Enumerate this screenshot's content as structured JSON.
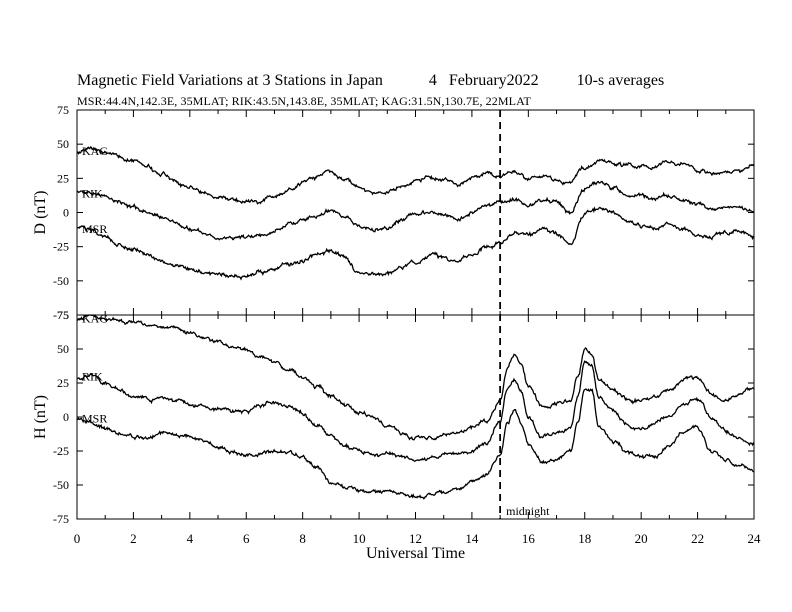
{
  "title": "Magnetic Field Variations at 3 Stations in Japan",
  "date_label": "4   February2022",
  "averaging": "10-s averages",
  "subtitle": "MSR:44.4N,142.3E, 35MLAT;  RIK:43.5N,143.8E, 35MLAT;  KAG:31.5N,130.7E, 22MLAT",
  "chart_data": [
    {
      "type": "line",
      "ylabel": "D (nT)",
      "ylim": [
        -75,
        75
      ],
      "yticks": [
        75,
        50,
        25,
        0,
        -25,
        -50,
        -75
      ],
      "xlim": [
        0,
        24
      ],
      "series": [
        {
          "name": "KAG",
          "x": [
            0,
            0.5,
            1,
            1.5,
            2,
            2.5,
            3,
            3.5,
            4,
            4.5,
            5,
            5.5,
            6,
            6.5,
            7,
            7.5,
            8,
            8.5,
            9,
            9.5,
            10,
            10.5,
            11,
            11.5,
            12,
            12.5,
            13,
            13.5,
            14,
            14.5,
            15,
            15.5,
            16,
            16.5,
            17,
            17.5,
            18,
            18.5,
            19,
            19.5,
            20,
            20.5,
            21,
            21.5,
            22,
            22.5,
            23,
            23.5,
            24
          ],
          "y": [
            45,
            48,
            45,
            42,
            38,
            33,
            28,
            23,
            18,
            14,
            11,
            9,
            8,
            8,
            12,
            17,
            22,
            26,
            30,
            25,
            17,
            14,
            14,
            19,
            24,
            26,
            24,
            20,
            25,
            28,
            27,
            30,
            25,
            27,
            24,
            22,
            33,
            38,
            37,
            35,
            33,
            34,
            37,
            36,
            32,
            29,
            30,
            31,
            34
          ]
        },
        {
          "name": "RIK",
          "x": [
            0,
            0.5,
            1,
            1.5,
            2,
            2.5,
            3,
            3.5,
            4,
            4.5,
            5,
            5.5,
            6,
            6.5,
            7,
            7.5,
            8,
            8.5,
            9,
            9.5,
            10,
            10.5,
            11,
            11.5,
            12,
            12.5,
            13,
            13.5,
            14,
            14.5,
            15,
            15.5,
            16,
            16.5,
            17,
            17.5,
            18,
            18.5,
            19,
            19.5,
            20,
            20.5,
            21,
            21.5,
            22,
            22.5,
            23,
            23.5,
            24
          ],
          "y": [
            15,
            16,
            12,
            8,
            4,
            0,
            -4,
            -8,
            -12,
            -15,
            -17,
            -18,
            -19,
            -17,
            -14,
            -10,
            -6,
            -2,
            2,
            -3,
            -10,
            -12,
            -12,
            -6,
            -1,
            0,
            -2,
            -5,
            0,
            4,
            6,
            10,
            5,
            10,
            8,
            0,
            18,
            22,
            18,
            14,
            12,
            10,
            12,
            10,
            6,
            3,
            4,
            3,
            0
          ]
        },
        {
          "name": "MSR",
          "x": [
            0,
            0.5,
            1,
            1.5,
            2,
            2.5,
            3,
            3.5,
            4,
            4.5,
            5,
            5.5,
            6,
            6.5,
            7,
            7.5,
            8,
            8.5,
            9,
            9.5,
            10,
            10.5,
            11,
            11.5,
            12,
            12.5,
            13,
            13.5,
            14,
            14.5,
            15,
            15.5,
            16,
            16.5,
            17,
            17.5,
            18,
            18.5,
            19,
            19.5,
            20,
            20.5,
            21,
            21.5,
            22,
            22.5,
            23,
            23.5,
            24
          ],
          "y": [
            -10,
            -12,
            -18,
            -24,
            -28,
            -31,
            -35,
            -39,
            -42,
            -44,
            -45,
            -46,
            -47,
            -44,
            -42,
            -38,
            -35,
            -30,
            -28,
            -34,
            -43,
            -45,
            -46,
            -40,
            -35,
            -31,
            -33,
            -36,
            -30,
            -25,
            -22,
            -15,
            -18,
            -13,
            -16,
            -22,
            0,
            4,
            0,
            -6,
            -9,
            -11,
            -9,
            -11,
            -15,
            -17,
            -15,
            -14,
            -18
          ]
        }
      ],
      "labels": [
        "KAG",
        "RIK",
        "MSR"
      ]
    },
    {
      "type": "line",
      "ylabel": "H (nT)",
      "ylim": [
        -75,
        75
      ],
      "yticks": [
        75,
        50,
        25,
        0,
        -25,
        -50,
        -75
      ],
      "xlim": [
        0,
        24
      ],
      "xlabel": "Universal Time",
      "xticks": [
        0,
        2,
        4,
        6,
        8,
        10,
        12,
        14,
        16,
        18,
        20,
        22,
        24
      ],
      "vline": {
        "x": 15,
        "label": "midnight"
      },
      "series": [
        {
          "name": "KAG",
          "x": [
            0,
            0.5,
            1,
            1.5,
            2,
            2.5,
            3,
            3.5,
            4,
            4.5,
            5,
            5.5,
            6,
            6.5,
            7,
            7.5,
            8,
            8.5,
            9,
            9.5,
            10,
            10.5,
            11,
            11.5,
            12,
            12.5,
            13,
            13.5,
            14,
            14.5,
            15,
            15.25,
            15.5,
            15.75,
            16,
            16.5,
            17,
            17.5,
            17.75,
            18,
            18.25,
            18.5,
            19,
            19.5,
            20,
            20.5,
            21,
            21.5,
            22,
            22.5,
            23,
            23.5,
            24
          ],
          "y": [
            72,
            74,
            72,
            70,
            70,
            68,
            67,
            66,
            62,
            58,
            55,
            52,
            50,
            45,
            40,
            34,
            28,
            22,
            15,
            8,
            4,
            0,
            -6,
            -12,
            -15,
            -16,
            -14,
            -12,
            -8,
            -3,
            12,
            35,
            44,
            38,
            22,
            8,
            10,
            12,
            30,
            50,
            47,
            28,
            20,
            13,
            12,
            15,
            20,
            28,
            30,
            18,
            12,
            16,
            22
          ]
        },
        {
          "name": "RIK",
          "x": [
            0,
            0.5,
            1,
            1.5,
            2,
            2.5,
            3,
            3.5,
            4,
            4.5,
            5,
            5.5,
            6,
            6.5,
            7,
            7.5,
            8,
            8.5,
            9,
            9.5,
            10,
            10.5,
            11,
            11.5,
            12,
            12.5,
            13,
            13.5,
            14,
            14.5,
            15,
            15.25,
            15.5,
            15.75,
            16,
            16.5,
            17,
            17.5,
            17.75,
            18,
            18.25,
            18.5,
            19,
            19.5,
            20,
            20.5,
            21,
            21.5,
            22,
            22.5,
            23,
            23.5,
            24
          ],
          "y": [
            28,
            30,
            25,
            20,
            15,
            12,
            14,
            12,
            10,
            8,
            6,
            4,
            5,
            8,
            10,
            8,
            2,
            -5,
            -15,
            -22,
            -25,
            -27,
            -28,
            -30,
            -32,
            -30,
            -28,
            -27,
            -25,
            -20,
            -2,
            22,
            28,
            18,
            0,
            -15,
            -12,
            -8,
            15,
            40,
            38,
            15,
            5,
            -4,
            -8,
            -5,
            0,
            10,
            12,
            -2,
            -10,
            -15,
            -20
          ]
        },
        {
          "name": "MSR",
          "x": [
            0,
            0.5,
            1,
            1.5,
            2,
            2.5,
            3,
            3.5,
            4,
            4.5,
            5,
            5.5,
            6,
            6.5,
            7,
            7.5,
            8,
            8.5,
            9,
            9.5,
            10,
            10.5,
            11,
            11.5,
            12,
            12.5,
            13,
            13.5,
            14,
            14.5,
            15,
            15.25,
            15.5,
            15.75,
            16,
            16.5,
            17,
            17.5,
            17.75,
            18,
            18.25,
            18.5,
            19,
            19.5,
            20,
            20.5,
            21,
            21.5,
            22,
            22.5,
            23,
            23.5,
            24
          ],
          "y": [
            -2,
            -4,
            -8,
            -12,
            -15,
            -15,
            -12,
            -14,
            -15,
            -18,
            -22,
            -26,
            -28,
            -27,
            -25,
            -27,
            -30,
            -37,
            -48,
            -52,
            -53,
            -54,
            -55,
            -56,
            -60,
            -57,
            -55,
            -52,
            -47,
            -42,
            -28,
            -5,
            5,
            -5,
            -20,
            -33,
            -30,
            -25,
            -5,
            20,
            18,
            -8,
            -18,
            -26,
            -30,
            -28,
            -22,
            -10,
            -8,
            -25,
            -32,
            -36,
            -40
          ]
        }
      ],
      "labels": [
        "KAG",
        "RIK",
        "MSR"
      ]
    }
  ]
}
